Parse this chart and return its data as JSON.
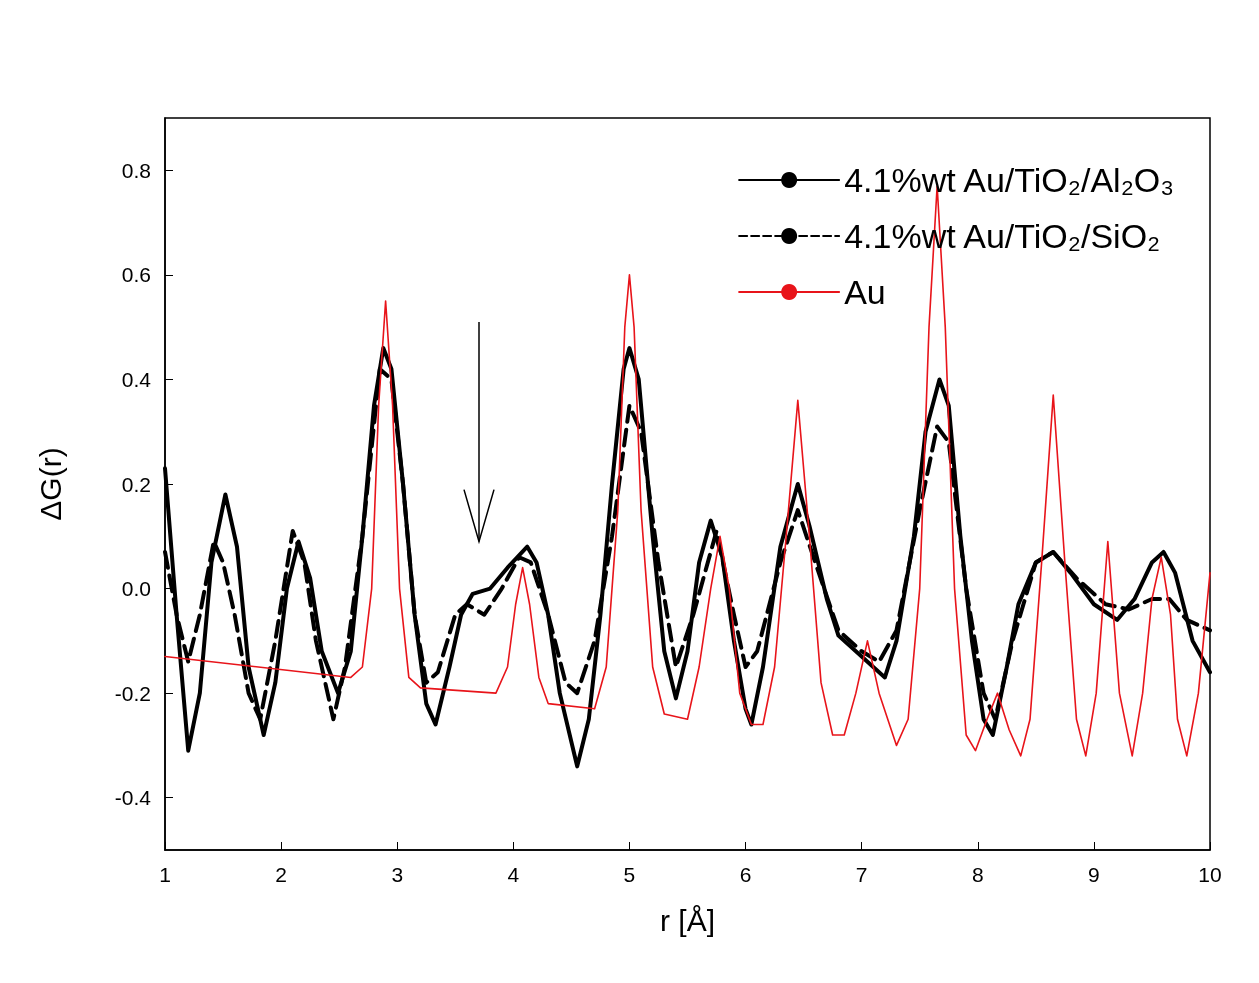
{
  "chart_data": {
    "type": "line",
    "xlabel": "r [Å]",
    "ylabel": "ΔG(r)",
    "xlim": [
      1,
      10
    ],
    "xticks": [
      1,
      2,
      3,
      4,
      5,
      6,
      7,
      8,
      9,
      10
    ],
    "ylim": [
      -0.5,
      0.9
    ],
    "yticks": [
      {
        "value": -0.4,
        "label": "-0.4"
      },
      {
        "value": -0.2,
        "label": "-0.2"
      },
      {
        "value": 0,
        "label": "0.0"
      },
      {
        "value": 0.2,
        "label": "0.2"
      },
      {
        "value": 0.4,
        "label": "0.4"
      },
      {
        "value": 0.6,
        "label": "0.6"
      },
      {
        "value": 0.8,
        "label": "0.8"
      }
    ],
    "grid": false,
    "legend": "top right",
    "marker": "none",
    "series": [
      {
        "name": "4.1%wt Au/TiO₂/Al₂O₃",
        "color": "#000000",
        "line_style": "solid",
        "x": [
          1.0,
          1.1,
          1.2,
          1.3,
          1.4,
          1.52,
          1.62,
          1.72,
          1.85,
          1.95,
          2.05,
          2.15,
          2.25,
          2.35,
          2.49,
          2.6,
          2.7,
          2.8,
          2.88,
          2.95,
          3.05,
          3.15,
          3.25,
          3.33,
          3.45,
          3.55,
          3.65,
          3.8,
          3.95,
          4.12,
          4.2,
          4.3,
          4.4,
          4.55,
          4.65,
          4.75,
          4.85,
          4.95,
          5.0,
          5.08,
          5.2,
          5.3,
          5.4,
          5.5,
          5.6,
          5.7,
          5.8,
          5.9,
          6.0,
          6.05,
          6.15,
          6.3,
          6.45,
          6.55,
          6.7,
          6.8,
          6.95,
          7.1,
          7.2,
          7.3,
          7.45,
          7.55,
          7.67,
          7.75,
          7.85,
          7.95,
          8.05,
          8.13,
          8.25,
          8.35,
          8.5,
          8.65,
          8.8,
          9.0,
          9.2,
          9.35,
          9.5,
          9.6,
          9.7,
          9.85,
          10.0
        ],
        "values": [
          0.23,
          -0.05,
          -0.31,
          -0.2,
          0.05,
          0.18,
          0.08,
          -0.15,
          -0.28,
          -0.18,
          0.0,
          0.09,
          0.02,
          -0.12,
          -0.2,
          -0.12,
          0.1,
          0.35,
          0.46,
          0.42,
          0.2,
          -0.05,
          -0.22,
          -0.26,
          -0.15,
          -0.05,
          -0.01,
          0.0,
          0.04,
          0.08,
          0.05,
          -0.05,
          -0.2,
          -0.34,
          -0.25,
          -0.05,
          0.2,
          0.42,
          0.46,
          0.4,
          0.1,
          -0.12,
          -0.21,
          -0.12,
          0.05,
          0.13,
          0.06,
          -0.1,
          -0.23,
          -0.26,
          -0.15,
          0.08,
          0.2,
          0.12,
          -0.02,
          -0.09,
          -0.12,
          -0.15,
          -0.17,
          -0.1,
          0.1,
          0.3,
          0.4,
          0.35,
          0.1,
          -0.1,
          -0.25,
          -0.28,
          -0.15,
          -0.03,
          0.05,
          0.07,
          0.03,
          -0.03,
          -0.06,
          -0.02,
          0.05,
          0.07,
          0.03,
          -0.1,
          -0.16
        ]
      },
      {
        "name": "4.1%wt Au/TiO₂/SiO₂",
        "color": "#000000",
        "line_style": "dashed",
        "x": [
          1.0,
          1.1,
          1.2,
          1.3,
          1.42,
          1.5,
          1.6,
          1.72,
          1.82,
          1.95,
          2.1,
          2.2,
          2.3,
          2.45,
          2.55,
          2.7,
          2.85,
          2.95,
          3.05,
          3.15,
          3.25,
          3.35,
          3.5,
          3.6,
          3.75,
          3.9,
          4.05,
          4.15,
          4.3,
          4.45,
          4.55,
          4.7,
          4.85,
          5.0,
          5.1,
          5.25,
          5.4,
          5.55,
          5.75,
          5.9,
          6.0,
          6.1,
          6.3,
          6.45,
          6.6,
          6.8,
          7.0,
          7.15,
          7.3,
          7.5,
          7.65,
          7.75,
          7.9,
          8.05,
          8.15,
          8.3,
          8.5,
          8.65,
          8.85,
          9.1,
          9.3,
          9.5,
          9.65,
          9.8,
          10.0
        ],
        "values": [
          0.07,
          -0.05,
          -0.14,
          -0.05,
          0.09,
          0.05,
          -0.05,
          -0.2,
          -0.25,
          -0.1,
          0.11,
          0.05,
          -0.1,
          -0.25,
          -0.15,
          0.1,
          0.42,
          0.4,
          0.2,
          -0.05,
          -0.18,
          -0.16,
          -0.05,
          -0.03,
          -0.05,
          0.0,
          0.06,
          0.05,
          -0.05,
          -0.18,
          -0.2,
          -0.1,
          0.1,
          0.35,
          0.3,
          0.05,
          -0.15,
          -0.05,
          0.11,
          -0.05,
          -0.15,
          -0.12,
          0.05,
          0.15,
          0.05,
          -0.08,
          -0.12,
          -0.14,
          -0.08,
          0.15,
          0.31,
          0.28,
          0.0,
          -0.2,
          -0.25,
          -0.1,
          0.05,
          0.07,
          0.02,
          -0.03,
          -0.04,
          -0.02,
          -0.02,
          -0.06,
          -0.08
        ]
      },
      {
        "name": "Au",
        "color": "#e8141a",
        "line_style": "solid",
        "x": [
          1.0,
          2.6,
          2.7,
          2.78,
          2.84,
          2.9,
          2.96,
          3.02,
          3.1,
          3.2,
          3.85,
          3.95,
          4.02,
          4.08,
          4.14,
          4.22,
          4.3,
          4.7,
          4.8,
          4.9,
          4.96,
          5.0,
          5.04,
          5.1,
          5.2,
          5.3,
          5.5,
          5.6,
          5.7,
          5.78,
          5.86,
          5.95,
          6.05,
          6.15,
          6.25,
          6.35,
          6.45,
          6.55,
          6.65,
          6.75,
          6.85,
          6.95,
          7.05,
          7.15,
          7.3,
          7.4,
          7.5,
          7.58,
          7.65,
          7.72,
          7.8,
          7.9,
          7.98,
          8.08,
          8.17,
          8.27,
          8.37,
          8.45,
          8.55,
          8.65,
          8.75,
          8.85,
          8.93,
          9.02,
          9.12,
          9.22,
          9.33,
          9.42,
          9.5,
          9.58,
          9.66,
          9.72,
          9.8,
          9.9,
          10.0
        ],
        "values": [
          -0.13,
          -0.17,
          -0.15,
          0.0,
          0.35,
          0.55,
          0.35,
          0.0,
          -0.17,
          -0.19,
          -0.2,
          -0.15,
          -0.03,
          0.04,
          -0.03,
          -0.17,
          -0.22,
          -0.23,
          -0.15,
          0.15,
          0.5,
          0.6,
          0.5,
          0.15,
          -0.15,
          -0.24,
          -0.25,
          -0.15,
          0.0,
          0.1,
          0.0,
          -0.2,
          -0.26,
          -0.26,
          -0.15,
          0.1,
          0.36,
          0.1,
          -0.18,
          -0.28,
          -0.28,
          -0.2,
          -0.1,
          -0.2,
          -0.3,
          -0.25,
          0.0,
          0.5,
          0.77,
          0.5,
          0.0,
          -0.28,
          -0.31,
          -0.25,
          -0.2,
          -0.27,
          -0.32,
          -0.25,
          0.05,
          0.37,
          0.05,
          -0.25,
          -0.32,
          -0.2,
          0.09,
          -0.2,
          -0.32,
          -0.2,
          -0.02,
          0.06,
          -0.05,
          -0.25,
          -0.32,
          -0.2,
          0.03
        ]
      }
    ]
  }
}
